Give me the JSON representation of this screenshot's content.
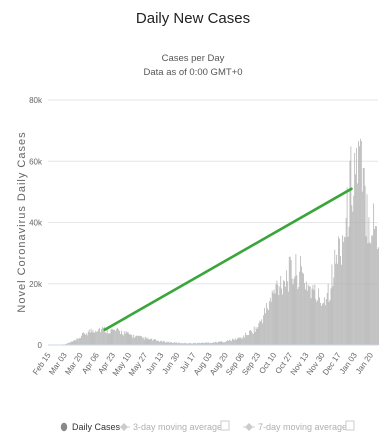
{
  "chart_data": {
    "type": "bar",
    "title": "Daily New Cases",
    "subtitle_line1": "Cases per Day",
    "subtitle_line2": "Data as of 0:00 GMT+0",
    "ylabel": "Novel Coronavirus Daily Cases",
    "ylim": [
      0,
      80000
    ],
    "y_ticks": [
      0,
      20000,
      40000,
      60000,
      80000
    ],
    "y_tick_labels": [
      "0",
      "20k",
      "40k",
      "60k",
      "80k"
    ],
    "x_tick_labels": [
      "Feb 15",
      "Mar 03",
      "Mar 20",
      "Apr 06",
      "Apr 23",
      "May 10",
      "May 27",
      "Jun 13",
      "Jun 30",
      "Jul 17",
      "Aug 03",
      "Aug 20",
      "Sep 06",
      "Sep 23",
      "Oct 10",
      "Oct 27",
      "Nov 13",
      "Nov 30",
      "Dec 17",
      "Jan 03",
      "Jan 20"
    ],
    "x_start": "2020-02-15",
    "x_end": "2021-01-28",
    "grid": true,
    "legend_position": "bottom",
    "series": [
      {
        "name": "Daily Cases",
        "color": "#b3b3b3",
        "anchors": [
          [
            "2020-02-15",
            0
          ],
          [
            "2020-03-03",
            200
          ],
          [
            "2020-03-15",
            1500
          ],
          [
            "2020-03-25",
            4000
          ],
          [
            "2020-04-06",
            5500
          ],
          [
            "2020-04-20",
            5000
          ],
          [
            "2020-05-01",
            4500
          ],
          [
            "2020-05-15",
            3000
          ],
          [
            "2020-05-27",
            2200
          ],
          [
            "2020-06-13",
            1200
          ],
          [
            "2020-06-30",
            700
          ],
          [
            "2020-07-17",
            600
          ],
          [
            "2020-08-03",
            800
          ],
          [
            "2020-08-20",
            1200
          ],
          [
            "2020-09-06",
            2500
          ],
          [
            "2020-09-23",
            6000
          ],
          [
            "2020-10-05",
            14000
          ],
          [
            "2020-10-15",
            21000
          ],
          [
            "2020-10-27",
            24000
          ],
          [
            "2020-11-05",
            25000
          ],
          [
            "2020-11-13",
            21000
          ],
          [
            "2020-11-22",
            17000
          ],
          [
            "2020-11-30",
            15000
          ],
          [
            "2020-12-08",
            20000
          ],
          [
            "2020-12-17",
            32000
          ],
          [
            "2020-12-25",
            40000
          ],
          [
            "2020-12-30",
            55000
          ],
          [
            "2021-01-03",
            60000
          ],
          [
            "2021-01-08",
            62000
          ],
          [
            "2021-01-13",
            50000
          ],
          [
            "2021-01-20",
            42000
          ],
          [
            "2021-01-28",
            38000
          ]
        ]
      },
      {
        "name": "3-day moving average",
        "color": "#bbbbbb"
      },
      {
        "name": "7-day moving average",
        "color": "#bbbbbb"
      },
      {
        "name": "",
        "color": "#3aa53a",
        "type": "line",
        "points": [
          [
            "2020-04-15",
            5000
          ],
          [
            "2020-12-31",
            51000
          ]
        ]
      }
    ],
    "legend": [
      {
        "label": "Daily Cases",
        "active": true
      },
      {
        "label": "3-day moving average",
        "active": false
      },
      {
        "label": "7-day moving average",
        "active": false
      }
    ]
  }
}
